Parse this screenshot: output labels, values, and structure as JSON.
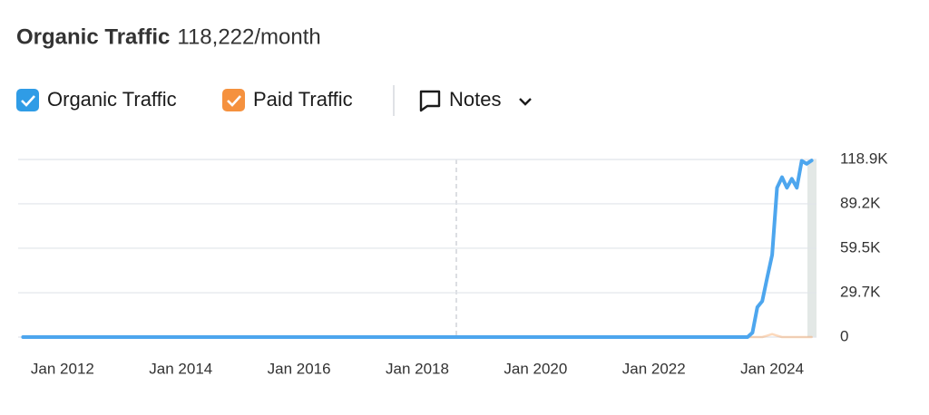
{
  "chart_data": {
    "type": "line",
    "title": "Organic Traffic",
    "subtitle": "118,222/month",
    "x": [
      "2011-05",
      "2023-07",
      "2023-08",
      "2023-09",
      "2023-10",
      "2023-11",
      "2023-12",
      "2024-01",
      "2024-02",
      "2024-03",
      "2024-04",
      "2024-05",
      "2024-06",
      "2024-07",
      "2024-08",
      "2024-09"
    ],
    "series": [
      {
        "name": "Organic Traffic",
        "color": "#4da6ee",
        "values": [
          0,
          0,
          0,
          3000,
          20000,
          24000,
          40000,
          55000,
          100000,
          107000,
          100000,
          106000,
          100000,
          118000,
          116000,
          118222
        ]
      },
      {
        "name": "Paid Traffic",
        "color": "#f5913e",
        "values": [
          0,
          0,
          0,
          0,
          0,
          0,
          1000,
          2000,
          1000,
          0,
          0,
          0,
          0,
          0,
          0,
          0
        ]
      }
    ],
    "xlim": [
      "2011-04",
      "2024-10"
    ],
    "xticks": [
      {
        "value": "2012-01",
        "label": "Jan 2012"
      },
      {
        "value": "2014-01",
        "label": "Jan 2014"
      },
      {
        "value": "2016-01",
        "label": "Jan 2016"
      },
      {
        "value": "2018-01",
        "label": "Jan 2018"
      },
      {
        "value": "2020-01",
        "label": "Jan 2020"
      },
      {
        "value": "2022-01",
        "label": "Jan 2022"
      },
      {
        "value": "2024-01",
        "label": "Jan 2024"
      }
    ],
    "ylim": [
      0,
      118900
    ],
    "yticks": [
      0,
      {
        "value": 29700,
        "label": "29.7K"
      },
      {
        "value": 59500,
        "label": "59.5K"
      },
      {
        "value": 89200,
        "label": "89.2K"
      },
      {
        "value": 118900,
        "label": "118.9K"
      }
    ],
    "grid": true
  },
  "toolbar": {
    "notes": "Notes"
  }
}
